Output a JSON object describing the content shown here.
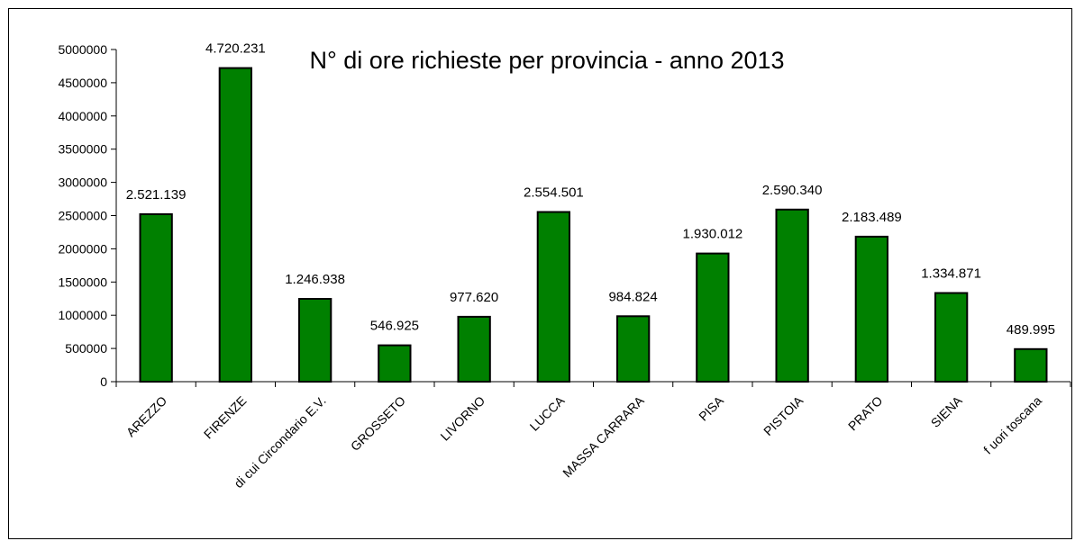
{
  "chart_data": {
    "type": "bar",
    "title": "N° di ore richieste per provincia - anno 2013",
    "xlabel": "",
    "ylabel": "",
    "categories": [
      "AREZZO",
      "FIRENZE",
      "di cui Circondario E.V.",
      "GROSSETO",
      "LIVORNO",
      "LUCCA",
      "MASSA CARRARA",
      "PISA",
      "PISTOIA",
      "PRATO",
      "SIENA",
      "f uori toscana"
    ],
    "values": [
      2521139,
      4720231,
      1246938,
      546925,
      977620,
      2554501,
      984824,
      1930012,
      2590340,
      2183489,
      1334871,
      489995
    ],
    "data_labels": [
      "2.521.139",
      "4.720.231",
      "1.246.938",
      "546.925",
      "977.620",
      "2.554.501",
      "984.824",
      "1.930.012",
      "2.590.340",
      "2.183.489",
      "1.334.871",
      "489.995"
    ],
    "yticks": [
      0,
      500000,
      1000000,
      1500000,
      2000000,
      2500000,
      3000000,
      3500000,
      4000000,
      4500000,
      5000000
    ],
    "ytick_labels": [
      "0",
      "500000",
      "1000000",
      "1500000",
      "2000000",
      "2500000",
      "3000000",
      "3500000",
      "4000000",
      "4500000",
      "5000000"
    ],
    "ylim": [
      0,
      5000000
    ],
    "grid": false,
    "legend": "none",
    "colors": {
      "bar": "#008000",
      "bar_edge": "#000000",
      "axis": "#000000",
      "frame": "#000000",
      "background": "#ffffff"
    }
  }
}
